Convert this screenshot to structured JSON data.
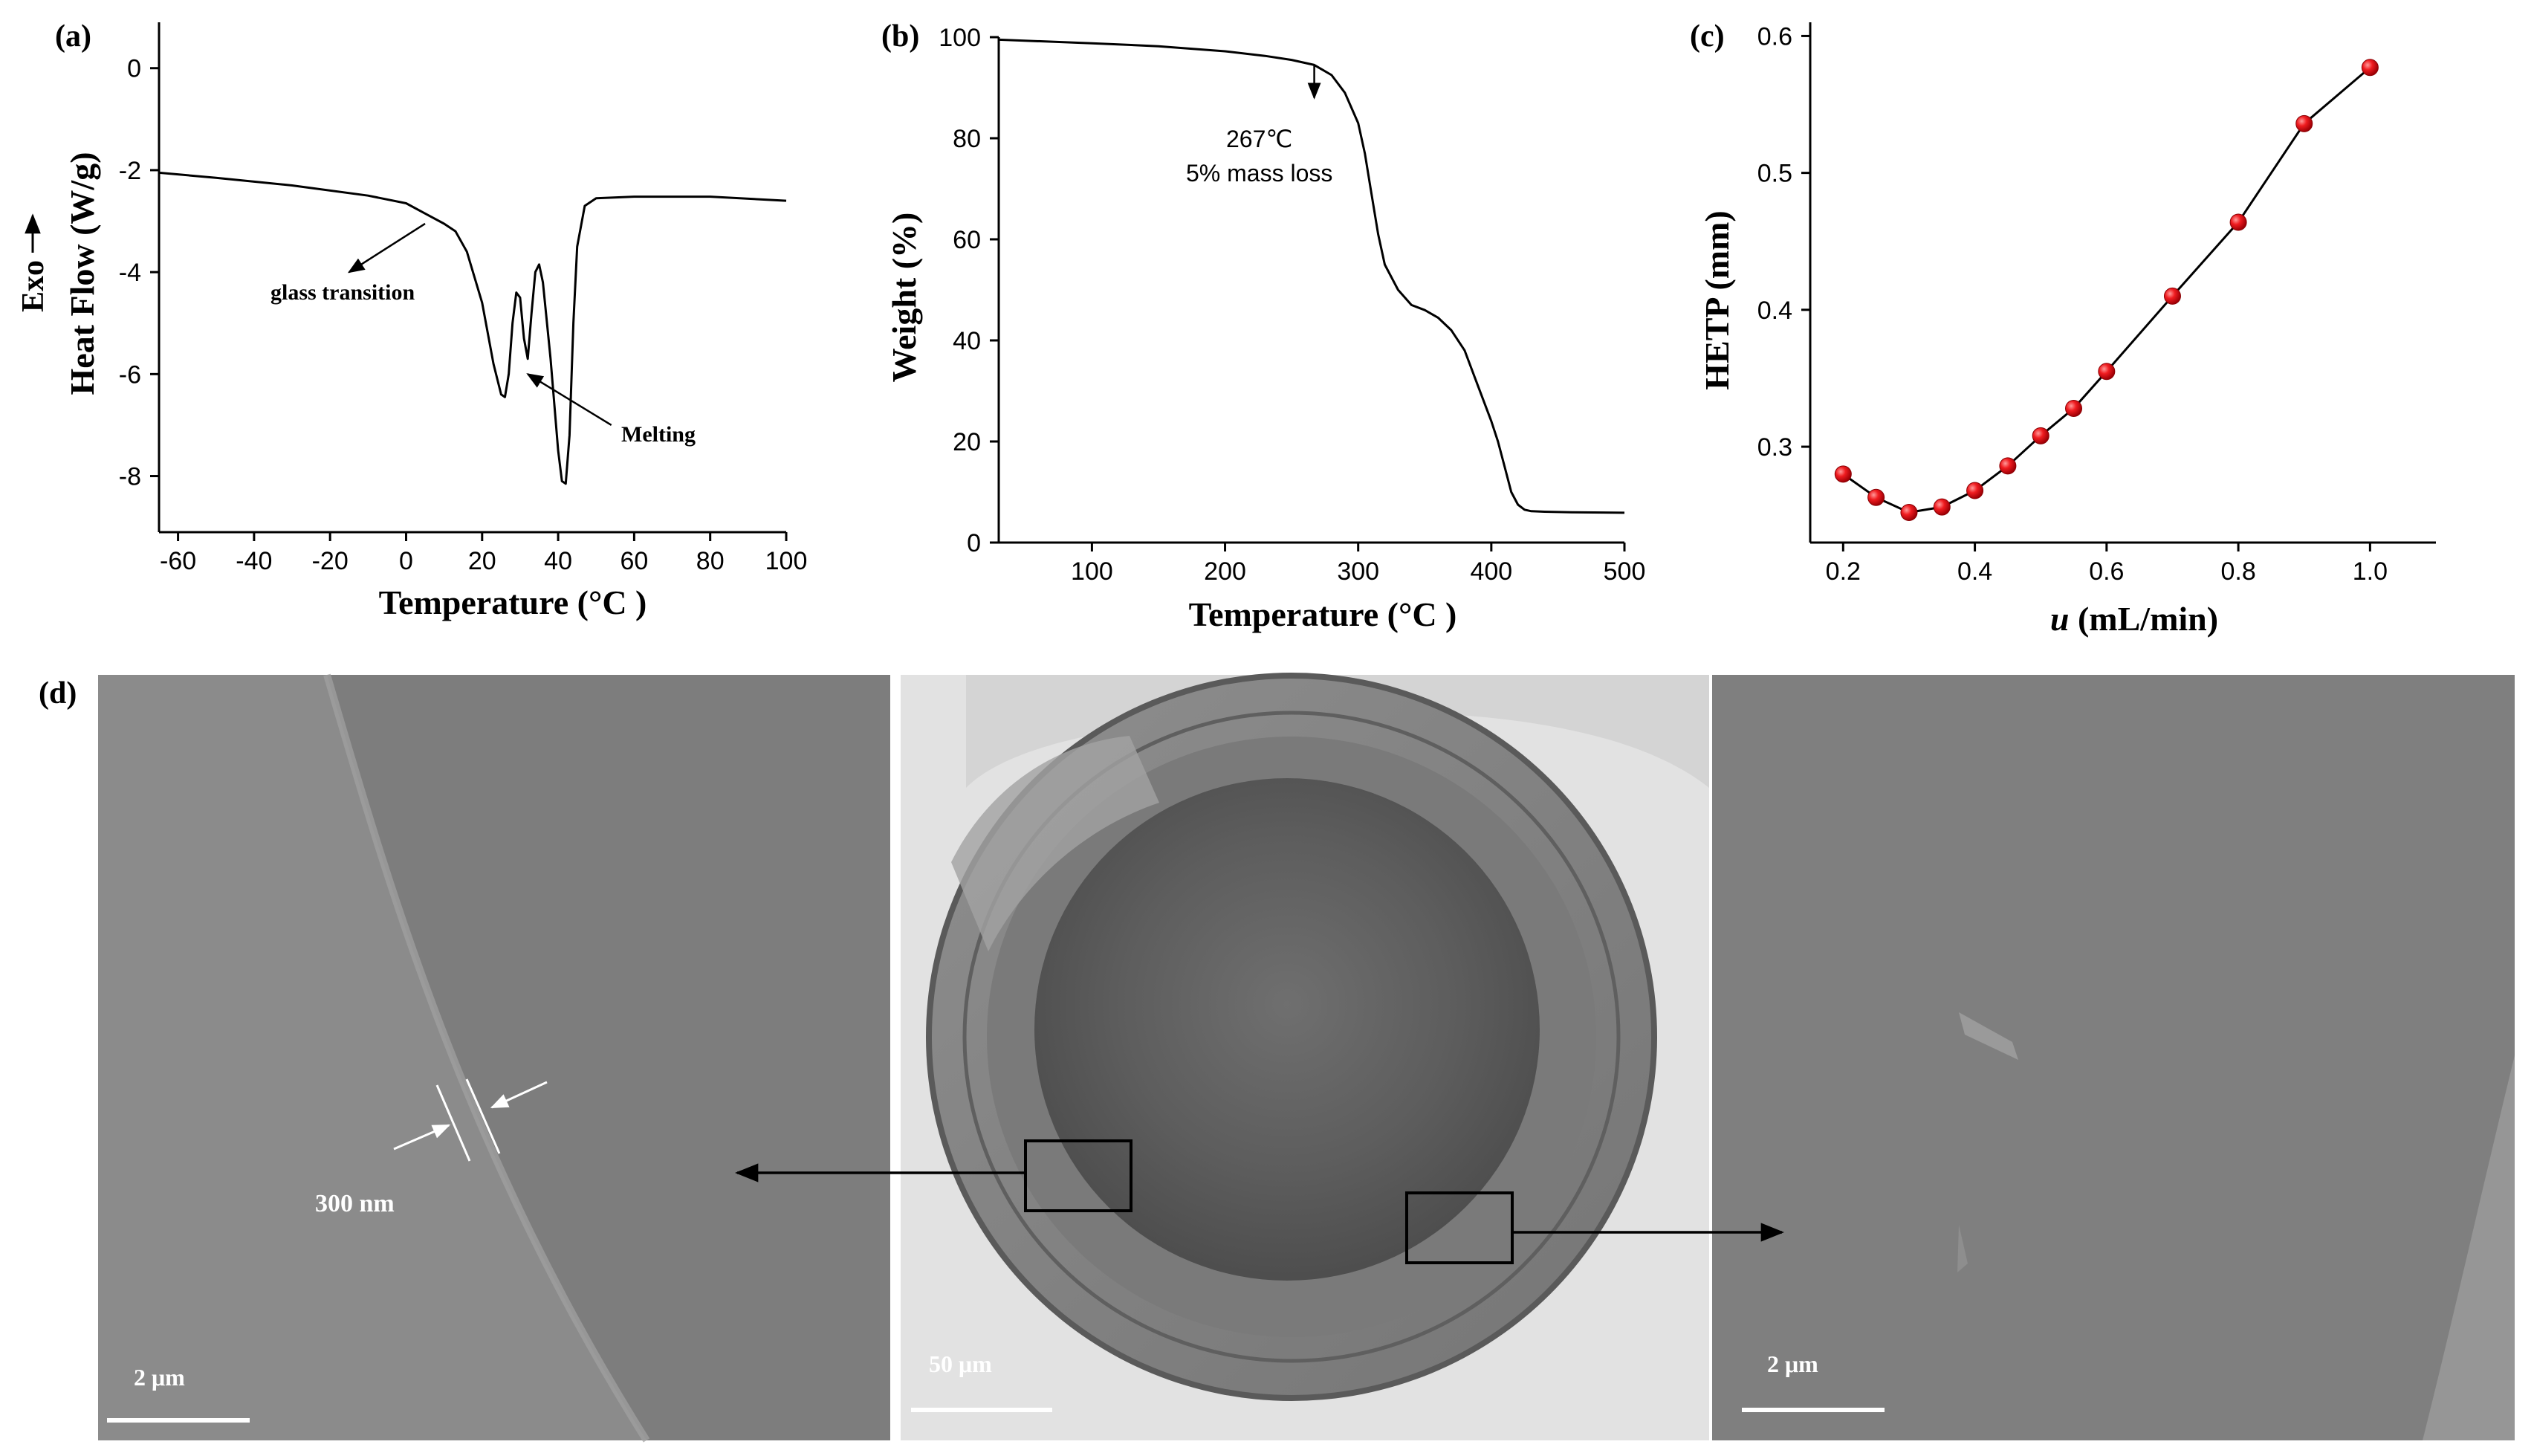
{
  "panel_labels": {
    "a": "(a)",
    "b": "(b)",
    "c": "(c)",
    "d": "(d)"
  },
  "chart_data": [
    {
      "id": "a",
      "type": "line",
      "xlabel": "Temperature (°C )",
      "ylabel": "Heat Flow (W/g)",
      "ylabel_prefix": "Exo",
      "xlim": [
        -65,
        100
      ],
      "ylim": [
        -9.1,
        0.9
      ],
      "xticks": [
        -60,
        -40,
        -20,
        0,
        20,
        40,
        60,
        80,
        100
      ],
      "yticks": [
        0,
        -2,
        -4,
        -6,
        -8
      ],
      "series": [
        {
          "x": [
            -65,
            -50,
            -30,
            -10,
            0,
            5,
            10,
            13,
            16,
            20,
            23,
            25,
            26,
            27,
            28,
            29,
            30,
            31,
            32,
            33,
            34,
            35,
            36,
            38,
            40,
            41,
            42,
            43,
            44,
            45,
            47,
            50,
            60,
            80,
            100
          ],
          "y": [
            -2.05,
            -2.15,
            -2.3,
            -2.5,
            -2.65,
            -2.85,
            -3.05,
            -3.2,
            -3.6,
            -4.6,
            -5.8,
            -6.4,
            -6.45,
            -6.0,
            -5.0,
            -4.4,
            -4.5,
            -5.3,
            -5.7,
            -4.8,
            -4.0,
            -3.85,
            -4.2,
            -5.7,
            -7.5,
            -8.1,
            -8.15,
            -7.2,
            -5.0,
            -3.5,
            -2.7,
            -2.55,
            -2.52,
            -2.52,
            -2.6
          ]
        }
      ],
      "annotations": [
        {
          "text": "glass transition",
          "from": [
            -15,
            -4.0
          ],
          "to": [
            5,
            -3.05
          ]
        },
        {
          "text": "Melting",
          "from": [
            32,
            -6.0
          ],
          "to": [
            54,
            -7.0
          ]
        }
      ]
    },
    {
      "id": "b",
      "type": "line",
      "xlabel": "Temperature (°C )",
      "ylabel": "Weight (%)",
      "xlim": [
        30,
        500
      ],
      "ylim": [
        0,
        100
      ],
      "xticks": [
        100,
        200,
        300,
        400,
        500
      ],
      "yticks": [
        0,
        20,
        40,
        60,
        80,
        100
      ],
      "series": [
        {
          "x": [
            30,
            100,
            150,
            200,
            230,
            250,
            267,
            280,
            290,
            300,
            305,
            310,
            315,
            320,
            330,
            340,
            350,
            360,
            370,
            380,
            390,
            400,
            405,
            410,
            415,
            420,
            425,
            430,
            440,
            460,
            500
          ],
          "y": [
            99.5,
            98.8,
            98.2,
            97.2,
            96.3,
            95.5,
            94.5,
            92.5,
            89,
            83,
            77,
            69,
            61,
            55,
            50,
            47,
            46,
            44.5,
            42,
            38,
            31,
            24,
            20,
            15,
            10,
            7.5,
            6.5,
            6.2,
            6.1,
            6.0,
            5.9
          ]
        }
      ],
      "annotations": [
        {
          "text": "267℃",
          "text2": "5% mass loss",
          "from": [
            267,
            88
          ],
          "to": [
            267,
            94.5
          ]
        }
      ]
    },
    {
      "id": "c",
      "type": "scatter",
      "xlabel": "u (mL/min)",
      "xlabel_italic": "u",
      "xlabel_rest": " (mL/min)",
      "ylabel": "HETP (mm)",
      "xlim": [
        0.15,
        1.1
      ],
      "ylim": [
        0.23,
        0.61
      ],
      "xticks": [
        0.2,
        0.4,
        0.6,
        0.8,
        1.0
      ],
      "xtick_labels": [
        "0.2",
        "0.4",
        "0.6",
        "0.8",
        "1.0"
      ],
      "yticks": [
        0.3,
        0.4,
        0.5,
        0.6
      ],
      "ytick_labels": [
        "0.3",
        "0.4",
        "0.5",
        "0.6"
      ],
      "marker_color": "#e8141a",
      "series": [
        {
          "x": [
            0.2,
            0.25,
            0.3,
            0.35,
            0.4,
            0.45,
            0.5,
            0.55,
            0.6,
            0.7,
            0.8,
            0.9,
            1.0
          ],
          "y": [
            0.28,
            0.263,
            0.252,
            0.256,
            0.268,
            0.286,
            0.308,
            0.328,
            0.355,
            0.41,
            0.464,
            0.536,
            0.577
          ]
        }
      ]
    }
  ],
  "sem": {
    "left_annotation": "300 nm",
    "left_scale": "2 μm",
    "mid_scale": "50 μm",
    "right_scale": "2 μm"
  }
}
